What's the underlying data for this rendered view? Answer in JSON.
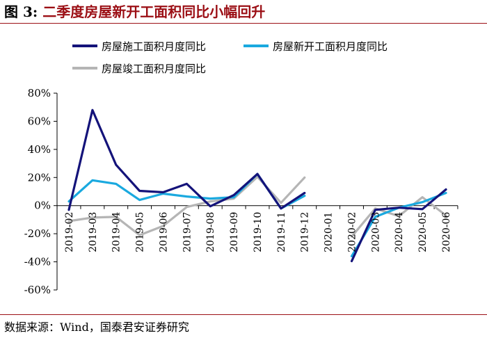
{
  "header": {
    "figure_label": "图 3:",
    "title": "二季度房屋新开工面积同比小幅回升"
  },
  "footer": {
    "source": "数据来源：Wind，国泰君安证券研究"
  },
  "chart_data": {
    "type": "line",
    "categories": [
      "2019-02",
      "2019-03",
      "2019-04",
      "2019-05",
      "2019-06",
      "2019-07",
      "2019-08",
      "2019-09",
      "2019-10",
      "2019-11",
      "2019-12",
      "2020-01",
      "2020-02",
      "2020-03",
      "2020-04",
      "2020-05",
      "2020-06"
    ],
    "ylim": [
      -60,
      80
    ],
    "yticks": [
      80,
      60,
      40,
      20,
      0,
      -20,
      -40,
      -60
    ],
    "ytick_labels": [
      "80%",
      "60%",
      "40%",
      "20%",
      "0%",
      "-20%",
      "-40%",
      "-60%"
    ],
    "grid": false,
    "legend_position": "top",
    "series": [
      {
        "name": "房屋施工面积月度同比",
        "color": "#14137a",
        "values": [
          -3,
          68,
          29,
          10.5,
          9.5,
          15.5,
          -0.5,
          7.5,
          22.5,
          -2,
          9,
          null,
          -39.5,
          -3,
          -1.5,
          -2.5,
          11.5
        ]
      },
      {
        "name": "房屋新开工面积月度同比",
        "color": "#1aa9df",
        "values": [
          3,
          18,
          15.5,
          4,
          8.5,
          6.5,
          5,
          6,
          22.5,
          -2,
          7,
          null,
          -36,
          -8,
          -1.5,
          2.5,
          9
        ]
      },
      {
        "name": "房屋竣工面积月度同比",
        "color": "#b5b5b5",
        "values": [
          -11,
          -8.5,
          -8,
          -21,
          -14.5,
          -1,
          3,
          5,
          20.5,
          2,
          20,
          null,
          -22,
          -2,
          -7.5,
          6,
          -7
        ]
      }
    ]
  }
}
